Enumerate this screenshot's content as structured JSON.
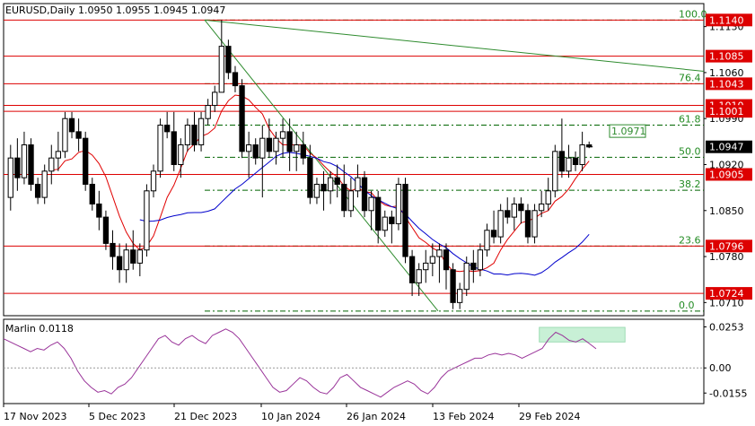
{
  "chart_data": [
    {
      "type": "candlestick",
      "title": "EURUSD,Daily  1.0950 1.0955 1.0945 1.0947",
      "y_ticks": [
        "1.1130",
        "1.1060",
        "1.0990",
        "1.0920",
        "1.0850",
        "1.0780",
        "1.0710"
      ],
      "ylim": [
        1.069,
        1.1165
      ],
      "x_ticks": [
        "17 Nov 2023",
        "5 Dec 2023",
        "21 Dec 2023",
        "10 Jan 2024",
        "26 Jan 2024",
        "13 Feb 2024",
        "29 Feb 2024"
      ],
      "current_price": "1.0947",
      "horizontal_levels": [
        {
          "label": "1.1140",
          "value": 1.114
        },
        {
          "label": "1.1085",
          "value": 1.1085
        },
        {
          "label": "1.1043",
          "value": 1.1043
        },
        {
          "label": "1.1010",
          "value": 1.101
        },
        {
          "label": "1.1001",
          "value": 1.1001
        },
        {
          "label": "1.0905",
          "value": 1.0905
        },
        {
          "label": "1.0796",
          "value": 1.0796
        },
        {
          "label": "1.0724",
          "value": 1.0724
        }
      ],
      "fibonacci_levels": [
        {
          "label": "100.0",
          "value": 1.114
        },
        {
          "label": "76.4",
          "value": 1.1043
        },
        {
          "label": "61.8",
          "value": 1.098
        },
        {
          "label": "50.0",
          "value": 1.0931
        },
        {
          "label": "38.2",
          "value": 1.0881
        },
        {
          "label": "23.6",
          "value": 1.0796
        },
        {
          "label": "0.0",
          "value": 1.0697
        }
      ],
      "annotation_box": "1.0971",
      "candles_ohlc": [
        [
          1.087,
          1.095,
          1.085,
          1.093
        ],
        [
          1.093,
          1.096,
          1.088,
          1.09
        ],
        [
          1.09,
          1.097,
          1.089,
          1.095
        ],
        [
          1.095,
          1.096,
          1.088,
          1.089
        ],
        [
          1.089,
          1.09,
          1.086,
          1.087
        ],
        [
          1.087,
          1.092,
          1.086,
          1.091
        ],
        [
          1.091,
          1.095,
          1.089,
          1.093
        ],
        [
          1.093,
          1.097,
          1.091,
          1.094
        ],
        [
          1.094,
          1.1,
          1.093,
          1.099
        ],
        [
          1.099,
          1.1,
          1.096,
          1.097
        ],
        [
          1.097,
          1.099,
          1.094,
          1.096
        ],
        [
          1.096,
          1.097,
          1.088,
          1.089
        ],
        [
          1.089,
          1.09,
          1.085,
          1.086
        ],
        [
          1.086,
          1.088,
          1.082,
          1.084
        ],
        [
          1.084,
          1.085,
          1.079,
          1.08
        ],
        [
          1.08,
          1.082,
          1.076,
          1.078
        ],
        [
          1.078,
          1.08,
          1.074,
          1.076
        ],
        [
          1.076,
          1.08,
          1.074,
          1.079
        ],
        [
          1.079,
          1.082,
          1.076,
          1.077
        ],
        [
          1.077,
          1.08,
          1.075,
          1.079
        ],
        [
          1.079,
          1.089,
          1.078,
          1.088
        ],
        [
          1.088,
          1.092,
          1.087,
          1.091
        ],
        [
          1.091,
          1.099,
          1.09,
          1.098
        ],
        [
          1.098,
          1.1,
          1.096,
          1.097
        ],
        [
          1.097,
          1.1,
          1.091,
          1.092
        ],
        [
          1.092,
          1.096,
          1.09,
          1.095
        ],
        [
          1.095,
          1.099,
          1.094,
          1.098
        ],
        [
          1.098,
          1.1,
          1.094,
          1.095
        ],
        [
          1.095,
          1.1,
          1.094,
          1.099
        ],
        [
          1.099,
          1.102,
          1.098,
          1.101
        ],
        [
          1.101,
          1.104,
          1.1,
          1.103
        ],
        [
          1.103,
          1.114,
          1.103,
          1.11
        ],
        [
          1.11,
          1.111,
          1.105,
          1.106
        ],
        [
          1.106,
          1.107,
          1.103,
          1.104
        ],
        [
          1.104,
          1.105,
          1.093,
          1.094
        ],
        [
          1.094,
          1.097,
          1.09,
          1.095
        ],
        [
          1.095,
          1.096,
          1.092,
          1.093
        ],
        [
          1.093,
          1.098,
          1.087,
          1.096
        ],
        [
          1.096,
          1.099,
          1.093,
          1.094
        ],
        [
          1.094,
          1.097,
          1.092,
          1.096
        ],
        [
          1.096,
          1.099,
          1.093,
          1.097
        ],
        [
          1.097,
          1.099,
          1.091,
          1.094
        ],
        [
          1.094,
          1.097,
          1.091,
          1.095
        ],
        [
          1.095,
          1.097,
          1.092,
          1.093
        ],
        [
          1.093,
          1.095,
          1.086,
          1.087
        ],
        [
          1.087,
          1.09,
          1.086,
          1.089
        ],
        [
          1.089,
          1.091,
          1.085,
          1.088
        ],
        [
          1.088,
          1.091,
          1.086,
          1.09
        ],
        [
          1.09,
          1.092,
          1.087,
          1.089
        ],
        [
          1.089,
          1.092,
          1.084,
          1.085
        ],
        [
          1.085,
          1.09,
          1.084,
          1.088
        ],
        [
          1.088,
          1.092,
          1.087,
          1.09
        ],
        [
          1.09,
          1.091,
          1.084,
          1.085
        ],
        [
          1.085,
          1.088,
          1.082,
          1.087
        ],
        [
          1.087,
          1.088,
          1.08,
          1.082
        ],
        [
          1.082,
          1.085,
          1.081,
          1.084
        ],
        [
          1.084,
          1.085,
          1.08,
          1.083
        ],
        [
          1.083,
          1.09,
          1.082,
          1.089
        ],
        [
          1.089,
          1.09,
          1.077,
          1.078
        ],
        [
          1.078,
          1.079,
          1.072,
          1.074
        ],
        [
          1.074,
          1.077,
          1.072,
          1.076
        ],
        [
          1.076,
          1.079,
          1.074,
          1.077
        ],
        [
          1.077,
          1.08,
          1.075,
          1.078
        ],
        [
          1.078,
          1.08,
          1.074,
          1.079
        ],
        [
          1.079,
          1.08,
          1.073,
          1.076
        ],
        [
          1.076,
          1.077,
          1.07,
          1.071
        ],
        [
          1.071,
          1.074,
          1.07,
          1.073
        ],
        [
          1.073,
          1.078,
          1.072,
          1.077
        ],
        [
          1.077,
          1.079,
          1.074,
          1.076
        ],
        [
          1.076,
          1.08,
          1.075,
          1.079
        ],
        [
          1.079,
          1.083,
          1.078,
          1.082
        ],
        [
          1.082,
          1.085,
          1.08,
          1.081
        ],
        [
          1.081,
          1.086,
          1.08,
          1.085
        ],
        [
          1.085,
          1.087,
          1.083,
          1.084
        ],
        [
          1.084,
          1.087,
          1.082,
          1.086
        ],
        [
          1.086,
          1.087,
          1.083,
          1.085
        ],
        [
          1.085,
          1.086,
          1.08,
          1.081
        ],
        [
          1.081,
          1.086,
          1.08,
          1.085
        ],
        [
          1.085,
          1.088,
          1.084,
          1.086
        ],
        [
          1.086,
          1.09,
          1.085,
          1.088
        ],
        [
          1.088,
          1.095,
          1.087,
          1.094
        ],
        [
          1.094,
          1.099,
          1.09,
          1.091
        ],
        [
          1.091,
          1.095,
          1.09,
          1.093
        ],
        [
          1.093,
          1.094,
          1.091,
          1.092
        ],
        [
          1.092,
          1.097,
          1.091,
          1.095
        ],
        [
          1.095,
          1.0955,
          1.0945,
          1.0947
        ]
      ],
      "lines": [
        {
          "name": "red-ma",
          "color": "#e00000"
        },
        {
          "name": "blue-ma",
          "color": "#0000cc"
        },
        {
          "name": "green-trend",
          "color": "#00aa00"
        }
      ]
    },
    {
      "type": "line",
      "title": "Marlin 0.0118",
      "y_ticks": [
        "0.0253",
        "0.00",
        "-0.0155"
      ],
      "ylim": [
        -0.022,
        0.03
      ],
      "color": "#993399",
      "values": [
        0.018,
        0.016,
        0.014,
        0.012,
        0.01,
        0.012,
        0.011,
        0.014,
        0.016,
        0.012,
        0.006,
        -0.002,
        -0.008,
        -0.012,
        -0.015,
        -0.014,
        -0.016,
        -0.012,
        -0.01,
        -0.006,
        0.0,
        0.006,
        0.012,
        0.018,
        0.02,
        0.016,
        0.014,
        0.018,
        0.02,
        0.017,
        0.015,
        0.02,
        0.022,
        0.024,
        0.022,
        0.018,
        0.012,
        0.006,
        0.0,
        -0.006,
        -0.012,
        -0.015,
        -0.014,
        -0.01,
        -0.006,
        -0.008,
        -0.012,
        -0.015,
        -0.016,
        -0.012,
        -0.006,
        -0.004,
        -0.008,
        -0.012,
        -0.014,
        -0.016,
        -0.018,
        -0.015,
        -0.012,
        -0.01,
        -0.008,
        -0.01,
        -0.014,
        -0.016,
        -0.012,
        -0.006,
        -0.002,
        0.0,
        0.002,
        0.004,
        0.006,
        0.006,
        0.008,
        0.009,
        0.008,
        0.009,
        0.008,
        0.006,
        0.008,
        0.01,
        0.012,
        0.018,
        0.022,
        0.02,
        0.017,
        0.016,
        0.018,
        0.015,
        0.0118
      ],
      "highlight_box": true
    }
  ],
  "colors": {
    "bull_candle": "#ffffff",
    "bear_candle": "#000000",
    "level_line": "#dd0000",
    "level_label_bg": "#dd0000",
    "fib_line": "#006400",
    "fib_label": "#555555",
    "highlight_green": "#c8f0d6"
  }
}
